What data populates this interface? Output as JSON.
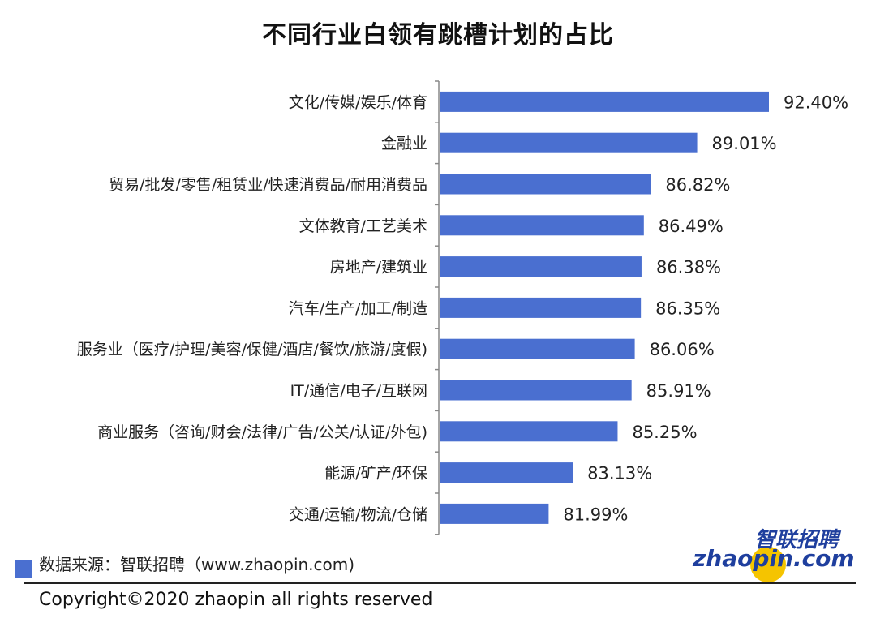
{
  "chart_data": {
    "type": "bar",
    "orientation": "horizontal",
    "title": "不同行业白领有跳槽计划的占比",
    "categories": [
      "文化/传媒/娱乐/体育",
      "金融业",
      "贸易/批发/零售/租赁业/快速消费品/耐用消费品",
      "文体教育/工艺美术",
      "房地产/建筑业",
      "汽车/生产/加工/制造",
      "服务业（医疗/护理/美容/保健/酒店/餐饮/旅游/度假)",
      "IT/通信/电子/互联网",
      "商业服务（咨询/财会/法律/广告/公关/认证/外包)",
      "能源/矿产/环保",
      "交通/运输/物流/仓储"
    ],
    "values": [
      92.4,
      89.01,
      86.82,
      86.49,
      86.38,
      86.35,
      86.06,
      85.91,
      85.25,
      83.13,
      81.99
    ],
    "value_labels": [
      "92.40%",
      "89.01%",
      "86.82%",
      "86.49%",
      "86.38%",
      "86.35%",
      "86.06%",
      "85.91%",
      "85.25%",
      "83.13%",
      "81.99%"
    ],
    "xlim": [
      76.8,
      92.4
    ],
    "bar_color": "#4a6fd0",
    "grid": false
  },
  "source_text": "数据来源：智联招聘（www.zhaopin.com)",
  "copyright": "Copyright©2020 zhaopin all rights reserved",
  "logo": {
    "cn_text": "智联招聘",
    "en_text": "zhaopin.com",
    "colors": {
      "blue": "#1f3f9e",
      "yellow": "#f5c400",
      "red": "#d81e2b"
    }
  }
}
